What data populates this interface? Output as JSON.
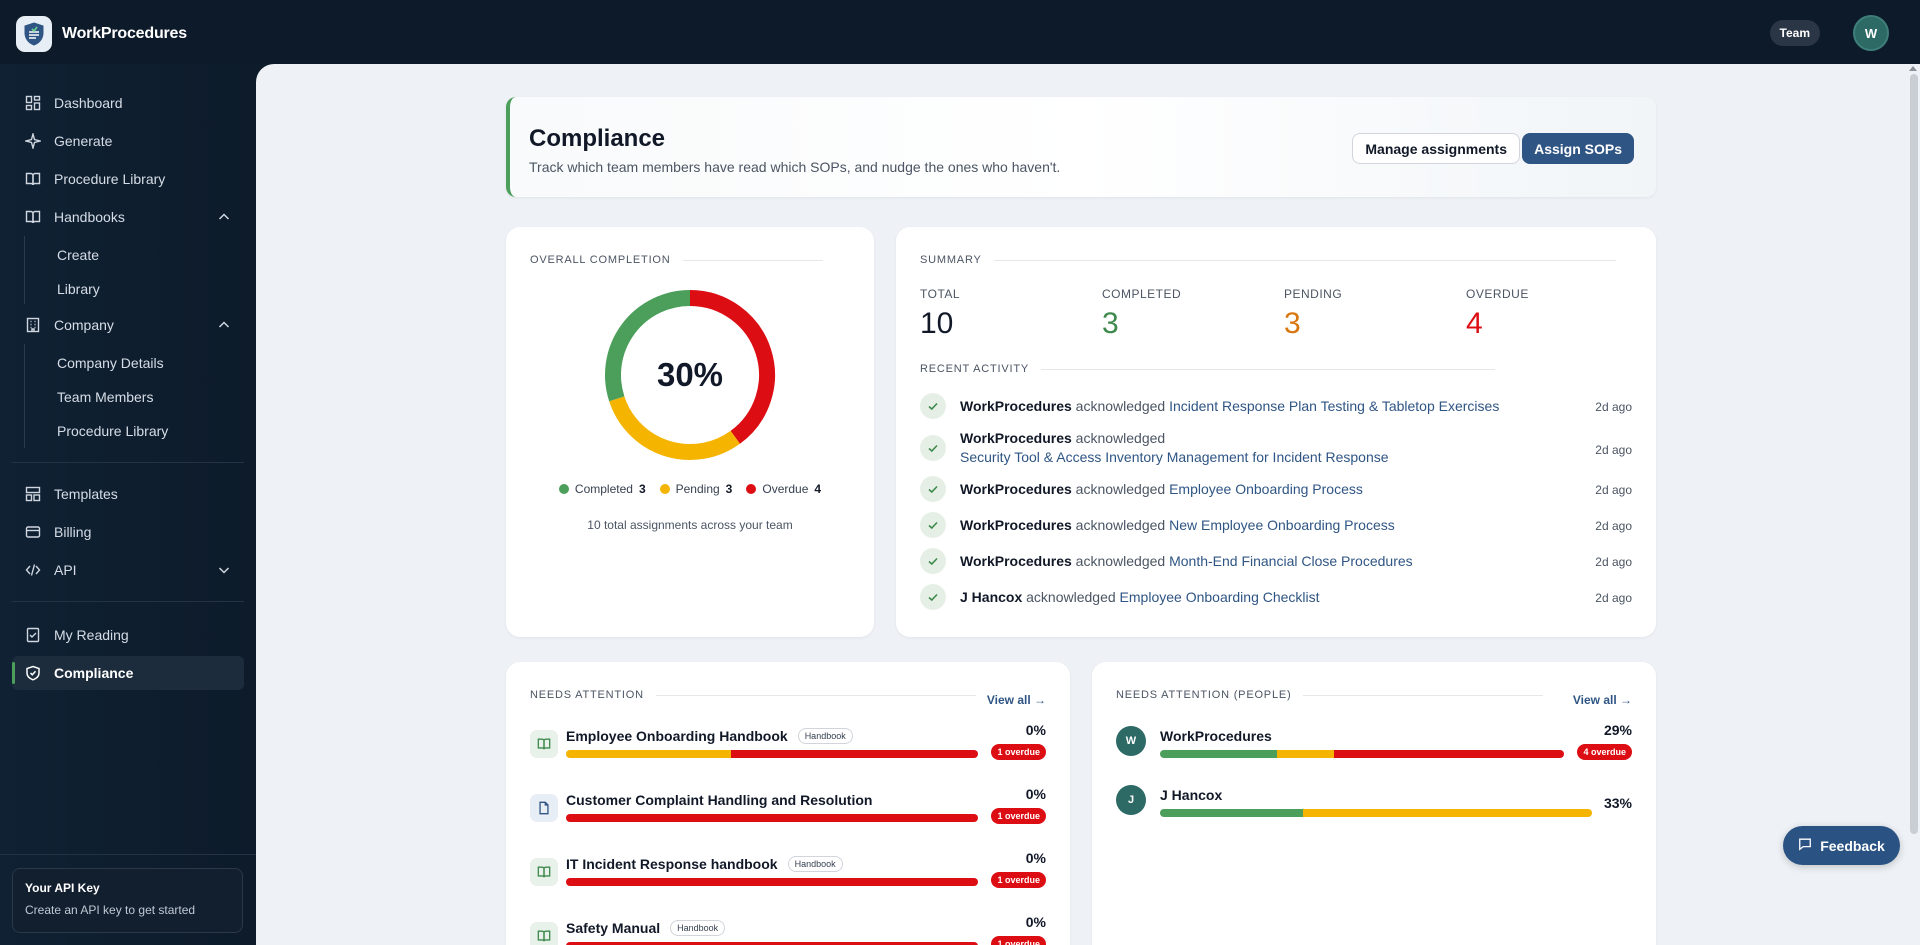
{
  "app": {
    "name": "WorkProcedures",
    "team_label": "Team",
    "user_initial": "W"
  },
  "sidebar": {
    "items": [
      {
        "label": "Dashboard",
        "icon": "dashboard-icon"
      },
      {
        "label": "Generate",
        "icon": "sparkle-icon"
      },
      {
        "label": "Procedure Library",
        "icon": "book-icon"
      },
      {
        "label": "Handbooks",
        "icon": "book-open-icon"
      },
      {
        "label": "Company",
        "icon": "building-icon"
      },
      {
        "label": "Templates",
        "icon": "template-icon"
      },
      {
        "label": "Billing",
        "icon": "card-icon"
      },
      {
        "label": "API",
        "icon": "code-icon"
      },
      {
        "label": "My Reading",
        "icon": "reading-icon"
      },
      {
        "label": "Compliance",
        "icon": "shield-check-icon"
      }
    ],
    "handbooks_sub": [
      "Create",
      "Library"
    ],
    "company_sub": [
      "Company Details",
      "Team Members",
      "Procedure Library"
    ],
    "api_card": {
      "title": "Your API Key",
      "subtitle": "Create an API key to get started"
    }
  },
  "header": {
    "title": "Compliance",
    "subtitle": "Track which team members have read which SOPs, and nudge the ones who haven't.",
    "manage_label": "Manage assignments",
    "assign_label": "Assign SOPs"
  },
  "overall": {
    "label": "Overall Completion",
    "percent_text": "30%",
    "legend": [
      {
        "label": "Completed",
        "count": "3",
        "color": "#4c9f5a"
      },
      {
        "label": "Pending",
        "count": "3",
        "color": "#f5b400"
      },
      {
        "label": "Overdue",
        "count": "4",
        "color": "#dc0e14"
      }
    ],
    "footer": "10 total assignments across your team",
    "values": {
      "completed": 3,
      "pending": 3,
      "overdue": 4
    }
  },
  "summary": {
    "label": "Summary",
    "stats": [
      {
        "label": "TOTAL",
        "value": "10",
        "color": "#111827"
      },
      {
        "label": "COMPLETED",
        "value": "3",
        "color": "#3e8a4c"
      },
      {
        "label": "PENDING",
        "value": "3",
        "color": "#d9770f"
      },
      {
        "label": "OVERDUE",
        "value": "4",
        "color": "#dc0e14"
      }
    ],
    "activity_label": "Recent Activity",
    "activity": [
      {
        "who": "WorkProcedures",
        "verb": "acknowledged",
        "what": "Incident Response Plan Testing & Tabletop Exercises",
        "time": "2d ago"
      },
      {
        "who": "WorkProcedures",
        "verb": "acknowledged",
        "what": "Security Tool & Access Inventory Management for Incident Response",
        "time": "2d ago"
      },
      {
        "who": "WorkProcedures",
        "verb": "acknowledged",
        "what": "Employee Onboarding Process",
        "time": "2d ago"
      },
      {
        "who": "WorkProcedures",
        "verb": "acknowledged",
        "what": "New Employee Onboarding Process",
        "time": "2d ago"
      },
      {
        "who": "WorkProcedures",
        "verb": "acknowledged",
        "what": "Month-End Financial Close Procedures",
        "time": "2d ago"
      },
      {
        "who": "J Hancox",
        "verb": "acknowledged",
        "what": "Employee Onboarding Checklist",
        "time": "2d ago"
      }
    ]
  },
  "needs_attention": {
    "label": "Needs Attention",
    "view_all": "View all →",
    "items": [
      {
        "title": "Employee Onboarding Handbook",
        "tag": "Handbook",
        "icon": "book-open-icon",
        "percent": "0%",
        "badge": "1 overdue",
        "segments": {
          "completed": 0,
          "pending": 0.4,
          "overdue": 0.6
        }
      },
      {
        "title": "Customer Complaint Handling and Resolution",
        "tag": "",
        "icon": "document-icon",
        "percent": "0%",
        "badge": "1 overdue",
        "segments": {
          "completed": 0,
          "pending": 0,
          "overdue": 1
        }
      },
      {
        "title": "IT Incident Response handbook",
        "tag": "Handbook",
        "icon": "book-open-icon",
        "percent": "0%",
        "badge": "1 overdue",
        "segments": {
          "completed": 0,
          "pending": 0,
          "overdue": 1
        }
      },
      {
        "title": "Safety Manual",
        "tag": "Handbook",
        "icon": "book-open-icon",
        "percent": "0%",
        "badge": "1 overdue",
        "segments": {
          "completed": 0,
          "pending": 0,
          "overdue": 1
        }
      }
    ]
  },
  "needs_attention_people": {
    "label": "Needs Attention (People)",
    "view_all": "View all →",
    "items": [
      {
        "name": "WorkProcedures",
        "initial": "W",
        "percent": "29%",
        "badge": "4 overdue",
        "segments": {
          "completed": 0.29,
          "pending": 0.14,
          "overdue": 0.57
        }
      },
      {
        "name": "J Hancox",
        "initial": "J",
        "percent": "33%",
        "badge": "",
        "segments": {
          "completed": 0.33,
          "pending": 0.67,
          "overdue": 0
        }
      }
    ]
  },
  "feedback_label": "Feedback",
  "colors": {
    "completed": "#4c9f5a",
    "pending": "#f5b400",
    "overdue": "#dc0e14",
    "accent": "#2f5584"
  }
}
